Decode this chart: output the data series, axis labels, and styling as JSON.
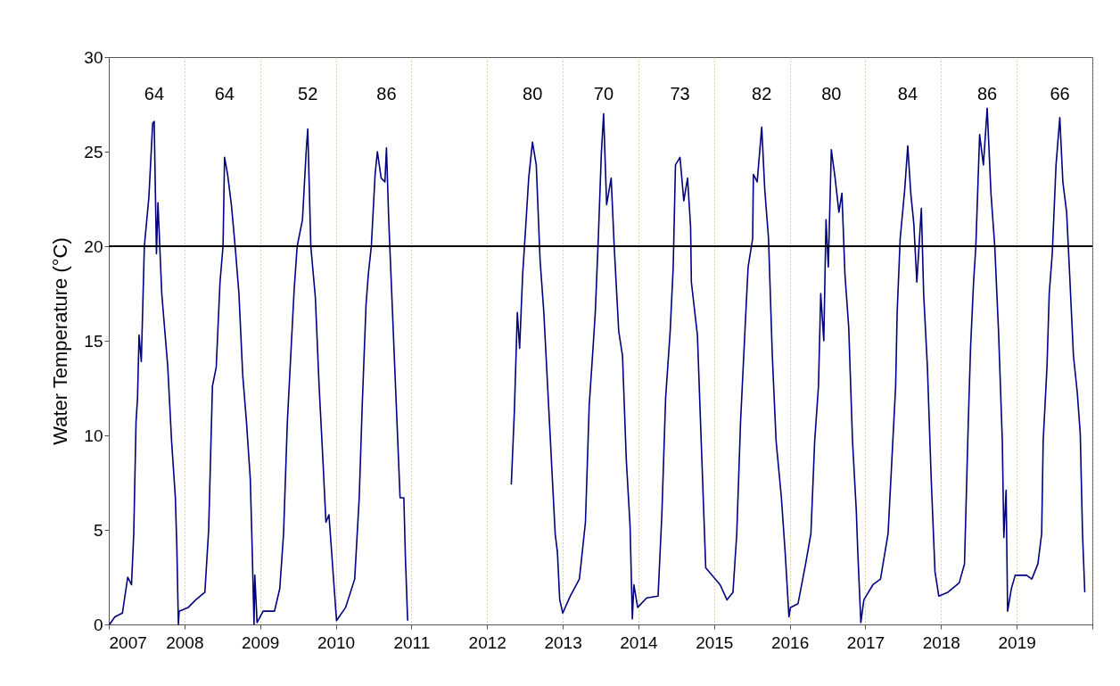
{
  "chart_data": {
    "type": "line",
    "ylabel": "Water Temperature (°C)",
    "xlim": [
      2007,
      2020
    ],
    "xticks": [
      2007,
      2008,
      2009,
      2010,
      2011,
      2012,
      2013,
      2014,
      2015,
      2016,
      2017,
      2018,
      2019,
      {
        "value": 2020,
        "label": null
      }
    ],
    "ylim": [
      0,
      30
    ],
    "yticks": [
      0,
      5,
      10,
      15,
      20,
      25,
      30
    ],
    "grid": "x",
    "marker": "none",
    "line_style": "solid",
    "ref_lines": [
      {
        "axis": "y",
        "value": 20,
        "color": "#000000"
      }
    ],
    "annotations": [
      "64",
      "64",
      "52",
      "86",
      "80",
      "70",
      "73",
      "82",
      "80",
      "84",
      "86",
      "66"
    ],
    "x": [
      2007.01,
      2007.08,
      2007.18,
      2007.25,
      2007.3,
      2007.33,
      2007.36,
      2007.38,
      2007.4,
      2007.43,
      2007.47,
      2007.53,
      2007.58,
      2007.6,
      2007.63,
      2007.65,
      2007.7,
      2007.78,
      2007.83,
      2007.88,
      2007.9,
      2007.92,
      2007.93,
      2008.05,
      2008.15,
      2008.27,
      2008.32,
      2008.37,
      2008.42,
      2008.47,
      2008.51,
      2008.53,
      2008.57,
      2008.62,
      2008.67,
      2008.72,
      2008.77,
      2008.82,
      2008.87,
      2008.89,
      2008.92,
      2008.93,
      2008.96,
      2009.04,
      2009.19,
      2009.26,
      2009.31,
      2009.36,
      2009.41,
      2009.45,
      2009.49,
      2009.56,
      2009.61,
      2009.63,
      2009.67,
      2009.73,
      2009.78,
      2009.83,
      2009.87,
      2009.91,
      2010.01,
      2010.13,
      2010.25,
      2010.31,
      2010.35,
      2010.4,
      2010.43,
      2010.47,
      2010.52,
      2010.55,
      2010.6,
      2010.65,
      2010.67,
      2010.7,
      2010.75,
      2010.8,
      2010.85,
      2010.9,
      2010.92,
      2010.95,
      2011.5,
      2012.32,
      2012.36,
      2012.4,
      2012.43,
      2012.47,
      2012.51,
      2012.55,
      2012.6,
      2012.65,
      2012.7,
      2012.75,
      2012.8,
      2012.85,
      2012.9,
      2012.93,
      2012.96,
      2013.0,
      2013.1,
      2013.22,
      2013.3,
      2013.35,
      2013.4,
      2013.43,
      2013.47,
      2013.51,
      2013.54,
      2013.58,
      2013.64,
      2013.68,
      2013.74,
      2013.79,
      2013.84,
      2013.89,
      2013.92,
      2013.94,
      2013.99,
      2014.11,
      2014.26,
      2014.31,
      2014.36,
      2014.42,
      2014.46,
      2014.49,
      2014.55,
      2014.6,
      2014.65,
      2014.69,
      2014.7,
      2014.78,
      2014.83,
      2014.89,
      2015.08,
      2015.17,
      2015.25,
      2015.3,
      2015.35,
      2015.42,
      2015.45,
      2015.51,
      2015.52,
      2015.57,
      2015.63,
      2015.67,
      2015.72,
      2015.77,
      2015.82,
      2015.89,
      2015.94,
      2015.99,
      2016.01,
      2016.11,
      2016.21,
      2016.28,
      2016.33,
      2016.38,
      2016.41,
      2016.45,
      2016.48,
      2016.51,
      2016.55,
      2016.6,
      2016.65,
      2016.69,
      2016.73,
      2016.78,
      2016.83,
      2016.88,
      2016.9,
      2016.94,
      2016.98,
      2017.1,
      2017.2,
      2017.3,
      2017.35,
      2017.4,
      2017.42,
      2017.46,
      2017.52,
      2017.56,
      2017.6,
      2017.64,
      2017.68,
      2017.74,
      2017.77,
      2017.82,
      2017.87,
      2017.92,
      2017.97,
      2018.09,
      2018.24,
      2018.31,
      2018.36,
      2018.39,
      2018.43,
      2018.46,
      2018.51,
      2018.56,
      2018.61,
      2018.66,
      2018.71,
      2018.76,
      2018.81,
      2018.83,
      2018.86,
      2018.88,
      2018.93,
      2018.98,
      2019.13,
      2019.2,
      2019.28,
      2019.33,
      2019.35,
      2019.4,
      2019.43,
      2019.47,
      2019.52,
      2019.57,
      2019.61,
      2019.66,
      2019.7,
      2019.75,
      2019.8,
      2019.84,
      2019.87,
      2019.9
    ],
    "series": [
      {
        "color": "#000080",
        "values": [
          0,
          0.4,
          0.6,
          2.5,
          2.1,
          4.8,
          10.7,
          12.0,
          15.3,
          13.9,
          20.0,
          22.6,
          26.5,
          26.6,
          19.6,
          22.3,
          17.5,
          13.6,
          9.7,
          6.7,
          4.0,
          0,
          0.7,
          0.9,
          1.3,
          1.7,
          5.0,
          12.6,
          13.6,
          18.1,
          20.0,
          24.7,
          23.8,
          22.2,
          20.0,
          17.5,
          13.2,
          10.7,
          7.7,
          4.8,
          0,
          2.6,
          0.1,
          0.7,
          0.7,
          1.9,
          4.8,
          10.7,
          14.6,
          17.7,
          20.0,
          21.4,
          25.1,
          26.2,
          20.0,
          17.3,
          12.6,
          8.7,
          5.4,
          5.8,
          0.2,
          0.9,
          2.4,
          6.7,
          11.6,
          16.9,
          18.5,
          20.0,
          23.8,
          25.0,
          23.6,
          23.4,
          25.2,
          21.4,
          16.5,
          11.6,
          6.7,
          6.7,
          3.6,
          0.2,
          null,
          7.4,
          11.2,
          16.5,
          14.6,
          18.5,
          21.0,
          23.6,
          25.5,
          24.3,
          19.3,
          16.5,
          12.6,
          8.7,
          4.8,
          3.8,
          1.3,
          0.6,
          1.5,
          2.4,
          5.4,
          11.6,
          14.6,
          16.5,
          20.4,
          24.9,
          27.0,
          22.2,
          23.6,
          20.0,
          15.5,
          14.2,
          8.7,
          5.2,
          0.3,
          2.1,
          0.9,
          1.4,
          1.5,
          5.8,
          12.0,
          15.5,
          18.9,
          24.3,
          24.7,
          22.4,
          23.6,
          21.0,
          18.1,
          15.3,
          9.7,
          3.0,
          2.1,
          1.3,
          1.7,
          4.8,
          10.7,
          16.5,
          18.9,
          20.4,
          23.8,
          23.4,
          26.3,
          23.0,
          20.4,
          14.2,
          9.7,
          6.7,
          3.8,
          0.4,
          0.9,
          1.1,
          3.2,
          4.8,
          9.7,
          12.6,
          17.5,
          15.0,
          21.4,
          18.9,
          25.1,
          23.6,
          21.8,
          22.8,
          18.5,
          15.7,
          9.7,
          6.0,
          3.8,
          0.1,
          1.3,
          2.1,
          2.4,
          4.8,
          8.7,
          12.6,
          16.5,
          20.4,
          23.0,
          25.3,
          22.8,
          21.2,
          18.1,
          22.0,
          17.5,
          13.6,
          7.7,
          2.8,
          1.5,
          1.7,
          2.2,
          3.2,
          10.7,
          14.6,
          18.1,
          20.0,
          25.9,
          24.3,
          27.3,
          22.8,
          20.0,
          15.5,
          9.7,
          4.6,
          7.1,
          0.7,
          1.9,
          2.6,
          2.6,
          2.4,
          3.2,
          4.8,
          9.7,
          13.6,
          17.5,
          19.6,
          24.3,
          26.8,
          23.4,
          21.8,
          18.5,
          14.2,
          12.3,
          10.1,
          4.8,
          1.7
        ]
      }
    ]
  }
}
